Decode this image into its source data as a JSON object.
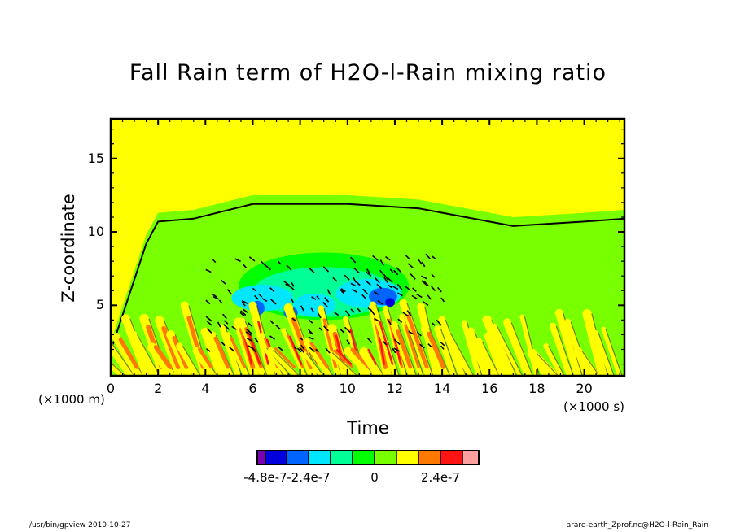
{
  "chart_data": {
    "type": "heatmap",
    "subtype": "filled-contour",
    "title": "Fall Rain term of H2O-l-Rain mixing ratio",
    "xlabel": "Time",
    "ylabel": "Z-coordinate",
    "x_unit": "(×1000 s)",
    "y_unit": "(×1000 m)",
    "xlim": [
      0,
      21.7
    ],
    "ylim": [
      0.2,
      17.7
    ],
    "x_ticks": [
      0,
      2,
      4,
      6,
      8,
      10,
      12,
      14,
      16,
      18,
      20
    ],
    "x_tick_labels": [
      "0",
      "2",
      "4",
      "6",
      "8",
      "10",
      "12",
      "14",
      "16",
      "18",
      "20"
    ],
    "y_ticks": [
      5,
      10,
      15
    ],
    "y_tick_labels": [
      "5",
      "10",
      "15"
    ],
    "colorbar": {
      "levels": [
        -5.4e-07,
        -4.8e-07,
        -3.6e-07,
        -2.4e-07,
        -1.2e-07,
        -6e-08,
        0,
        6e-08,
        1.2e-07,
        2.4e-07,
        3.6e-07
      ],
      "colors": [
        "#7a00b4",
        "#0000dc",
        "#0064ff",
        "#00e6ff",
        "#00ff96",
        "#00ff00",
        "#78ff00",
        "#ffff00",
        "#ff7800",
        "#ff1414",
        "#ffa0a0"
      ],
      "tick_labels": [
        "-4.8e-7",
        "-2.4e-7",
        "0",
        "2.4e-7"
      ],
      "tick_values": [
        -4.8e-07,
        -2.4e-07,
        0,
        2.4e-07
      ]
    },
    "regions": {
      "background_above_cloud": "0 (yellow band, positive small)",
      "cloud_layer_top_approx_km": [
        [
          0,
          2.5
        ],
        [
          1.5,
          9.8
        ],
        [
          2,
          11.3
        ],
        [
          3.5,
          11.5
        ],
        [
          6,
          12.5
        ],
        [
          10,
          12.5
        ],
        [
          13,
          12.2
        ],
        [
          17,
          11
        ],
        [
          20,
          11.3
        ],
        [
          21.7,
          11.5
        ]
      ],
      "negative_core": {
        "time_range": [
          5,
          13
        ],
        "z_range": [
          3.5,
          8.5
        ]
      },
      "positive_streaks": {
        "time_range": [
          0.5,
          21.7
        ],
        "z_range": [
          0.2,
          5.5
        ]
      }
    }
  },
  "footer": {
    "left": "/usr/bin/gpview   2010-10-27",
    "right": "arare-earth_Zprof.nc@H2O-l-Rain_Rain"
  }
}
